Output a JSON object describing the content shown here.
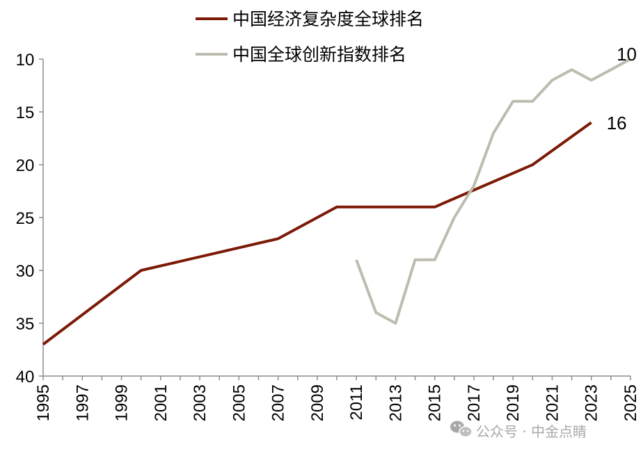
{
  "chart_data": {
    "type": "line",
    "title": "",
    "xlabel": "",
    "ylabel": "",
    "xlim": [
      1995,
      2025
    ],
    "ylim": [
      10,
      40
    ],
    "y_inverted": true,
    "y_ticks": [
      10,
      15,
      20,
      25,
      30,
      35,
      40
    ],
    "x_ticks": [
      1995,
      1997,
      1999,
      2001,
      2003,
      2005,
      2007,
      2009,
      2011,
      2013,
      2015,
      2017,
      2019,
      2021,
      2023,
      2025
    ],
    "grid": false,
    "legend_position": "top",
    "series": [
      {
        "name": "中国经济复杂度全球排名",
        "color": "#7b1a07",
        "points": [
          [
            1995,
            37
          ],
          [
            2000,
            30
          ],
          [
            2007,
            27
          ],
          [
            2010,
            24
          ],
          [
            2015,
            24
          ],
          [
            2020,
            20
          ],
          [
            2023,
            16
          ]
        ],
        "end_label": "16"
      },
      {
        "name": "中国全球创新指数排名",
        "color": "#bdbcae",
        "points": [
          [
            2011,
            29
          ],
          [
            2012,
            34
          ],
          [
            2013,
            35
          ],
          [
            2014,
            29
          ],
          [
            2015,
            29
          ],
          [
            2016,
            25
          ],
          [
            2017,
            22
          ],
          [
            2018,
            17
          ],
          [
            2019,
            14
          ],
          [
            2020,
            14
          ],
          [
            2021,
            12
          ],
          [
            2022,
            11
          ],
          [
            2023,
            12
          ],
          [
            2024,
            11
          ],
          [
            2025,
            10
          ]
        ],
        "end_label": "10"
      }
    ]
  },
  "watermark": {
    "text": "公众号 · 中金点睛",
    "icon": "wechat-icon"
  }
}
